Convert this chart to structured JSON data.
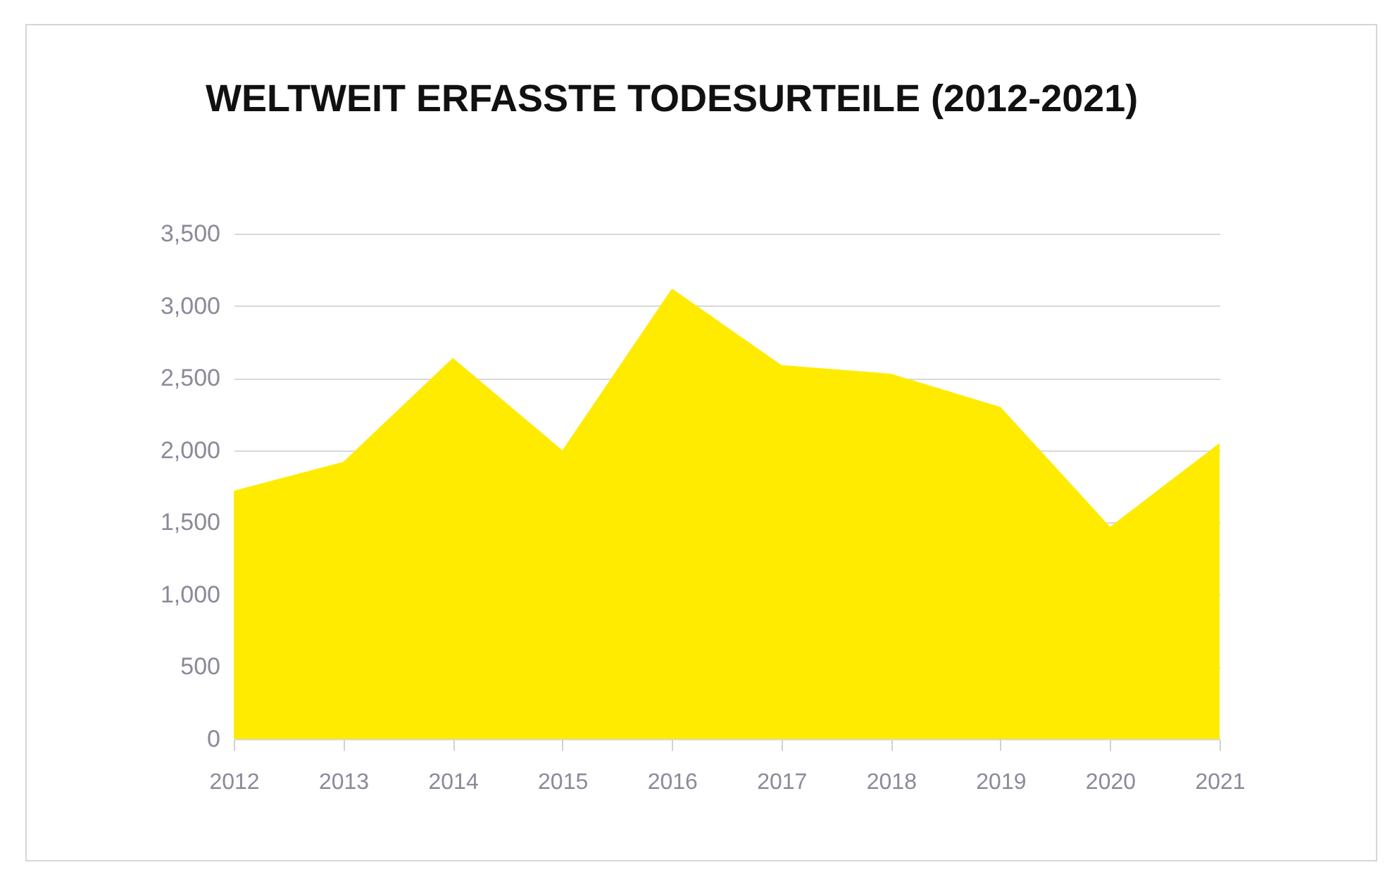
{
  "chart_data": {
    "type": "area",
    "title": "WELTWEIT ERFASSTE TODESURTEILE (2012-2021)",
    "categories": [
      "2012",
      "2013",
      "2014",
      "2015",
      "2016",
      "2017",
      "2018",
      "2019",
      "2020",
      "2021"
    ],
    "series": [
      {
        "color": "#ffeb00",
        "values": [
          1720,
          1920,
          2640,
          2000,
          3120,
          2590,
          2530,
          2300,
          1470,
          2050
        ]
      }
    ],
    "ylim": [
      0,
      3500
    ],
    "yticks": [
      0,
      {
        "value": 500,
        "label": "500"
      },
      {
        "value": 1000,
        "label": "1,000"
      },
      {
        "value": 1500,
        "label": "1,500"
      },
      {
        "value": 2000,
        "label": "2,000"
      },
      {
        "value": 2500,
        "label": "2,500"
      },
      {
        "value": 3000,
        "label": "3,000"
      },
      {
        "value": 3500,
        "label": "3,500"
      }
    ],
    "grid": "y"
  }
}
